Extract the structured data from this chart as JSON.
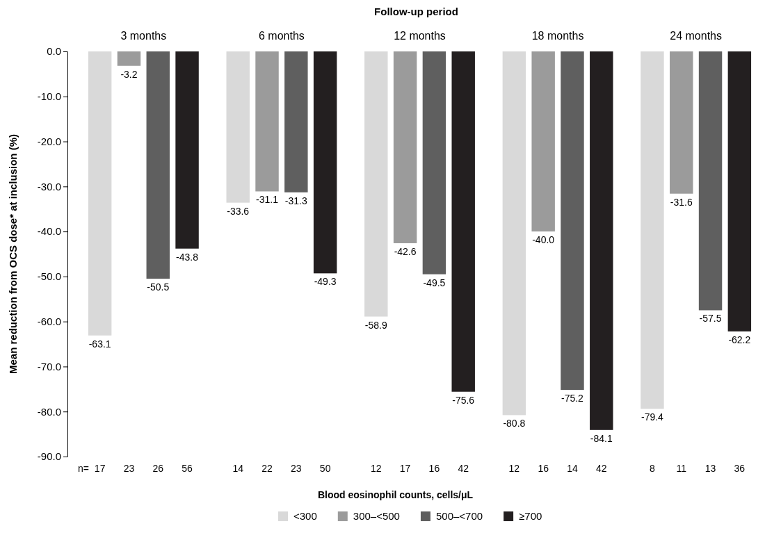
{
  "chart_data": {
    "type": "bar",
    "title": "Follow-up period",
    "ylabel": "Mean reduction from OCS dose* at inclusion (%)",
    "legend_title": "Blood eosinophil counts, cells/μL",
    "legend": "bottom",
    "categories": [
      "3 months",
      "6 months",
      "12 months",
      "18 months",
      "24 months"
    ],
    "ylim": [
      -90,
      0
    ],
    "yticks": [
      {
        "value": 0,
        "label": "0.0"
      },
      {
        "value": -10,
        "label": "-10.0"
      },
      {
        "value": -20,
        "label": "-20.0"
      },
      {
        "value": -30,
        "label": "-30.0"
      },
      {
        "value": -40,
        "label": "-40.0"
      },
      {
        "value": -50,
        "label": "-50.0"
      },
      {
        "value": -60,
        "label": "-60.0"
      },
      {
        "value": -70,
        "label": "-70.0"
      },
      {
        "value": -80,
        "label": "-80.0"
      },
      {
        "value": -90,
        "label": "-90.0"
      }
    ],
    "series": [
      {
        "name": "<300",
        "color": "#d9d9d9",
        "values": [
          -63.1,
          -33.6,
          -58.9,
          -80.8,
          -79.4
        ],
        "value_labels": [
          "-63.1",
          "-33.6",
          "-58.9",
          "-80.8",
          "-79.4"
        ]
      },
      {
        "name": "300–<500",
        "color": "#9b9b9b",
        "values": [
          -3.2,
          -31.1,
          -42.6,
          -40.0,
          -31.6
        ],
        "value_labels": [
          "-3.2",
          "-31.1",
          "-42.6",
          "-40.0",
          "-31.6"
        ]
      },
      {
        "name": "500–<700",
        "color": "#5f5f5f",
        "values": [
          -50.5,
          -31.3,
          -49.5,
          -75.2,
          -57.5
        ],
        "value_labels": [
          "-50.5",
          "-31.3",
          "-49.5",
          "-75.2",
          "-57.5"
        ]
      },
      {
        "name": "≥700",
        "color": "#231f20",
        "values": [
          -43.8,
          -49.3,
          -75.6,
          -84.1,
          -62.2
        ],
        "value_labels": [
          "-43.8",
          "-49.3",
          "-75.6",
          "-84.1",
          "-62.2"
        ]
      }
    ],
    "annotations": [
      "n=",
      "17",
      "23",
      "26",
      "56",
      "14",
      "22",
      "23",
      "50",
      "12",
      "17",
      "16",
      "42",
      "12",
      "16",
      "14",
      "42",
      "8",
      "11",
      "13",
      "36"
    ]
  }
}
